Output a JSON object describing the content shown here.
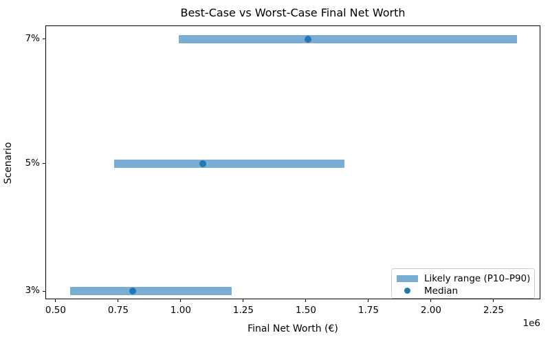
{
  "chart_data": {
    "type": "bar",
    "orientation": "horizontal",
    "title": "Best-Case vs Worst-Case Final Net Worth",
    "xlabel": "Final Net Worth (€)",
    "ylabel": "Scenario",
    "x_axis_offset_label": "1e6",
    "xlim": [
      459000,
      2437000
    ],
    "xticks": [
      500000,
      750000,
      1000000,
      1250000,
      1500000,
      1750000,
      2000000,
      2250000
    ],
    "xtick_labels": [
      "0.50",
      "0.75",
      "1.00",
      "1.25",
      "1.50",
      "1.75",
      "2.00",
      "2.25"
    ],
    "grid": false,
    "categories": [
      "7%",
      "5%",
      "3%"
    ],
    "rows": [
      {
        "scenario": "7%",
        "p10": 990000,
        "median": 1505000,
        "p90": 2340000,
        "y_frac": 0.05
      },
      {
        "scenario": "5%",
        "p10": 730000,
        "median": 1085000,
        "p90": 1650000,
        "y_frac": 0.505
      },
      {
        "scenario": "3%",
        "p10": 555000,
        "median": 805000,
        "p90": 1200000,
        "y_frac": 0.97
      }
    ],
    "colors": {
      "range_bar": "#79add2",
      "median_dot": "#1f77b4",
      "axes": "#000000",
      "legend_border": "#cccccc"
    },
    "legend": {
      "position": "lower right",
      "items": [
        {
          "type": "patch",
          "label": "Likely range (P10–P90)"
        },
        {
          "type": "dot",
          "label": "Median"
        }
      ]
    }
  }
}
